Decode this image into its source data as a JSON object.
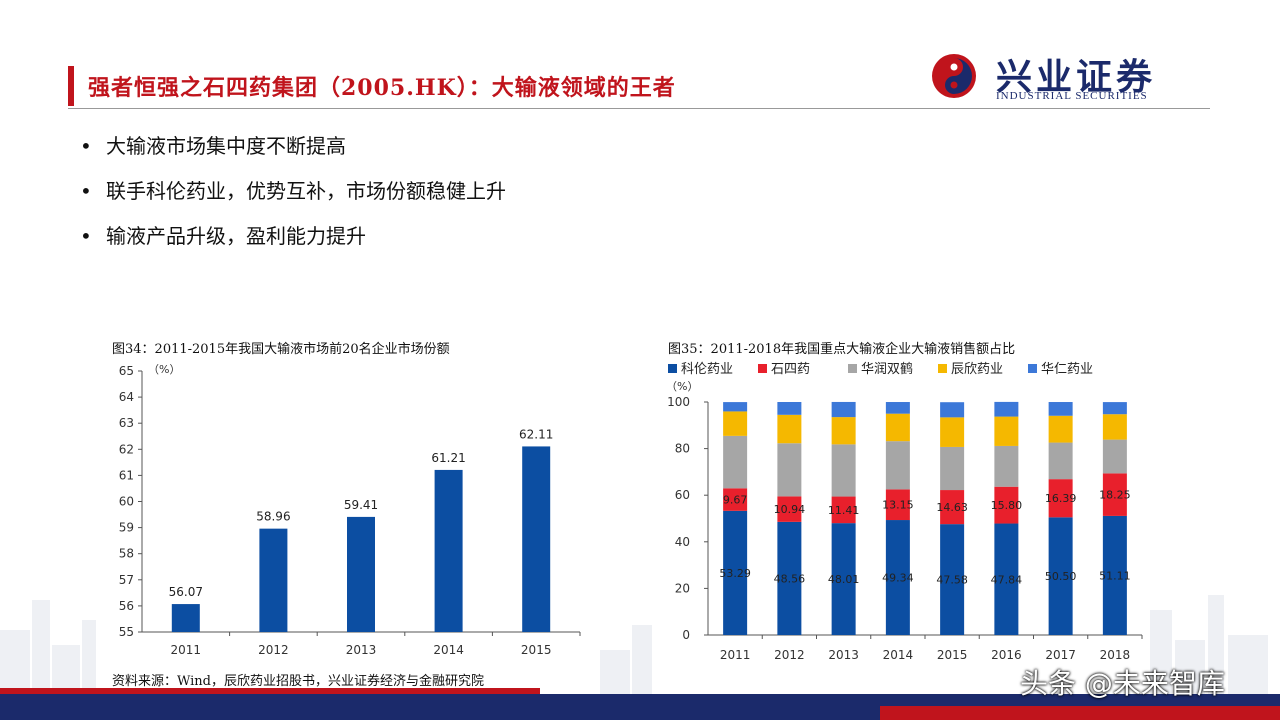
{
  "header": {
    "title": "强者恒强之石四药集团（2005.HK）：大输液领域的王者",
    "logo_cn": "兴业证券",
    "logo_en": "INDUSTRIAL SECURITIES"
  },
  "bullets": [
    "大输液市场集中度不断提高",
    "联手科伦药业，优势互补，市场份额稳健上升",
    "输液产品升级，盈利能力提升"
  ],
  "colors": {
    "accent_red": "#c0141c",
    "brand_navy": "#1b2a6b",
    "bar_blue": "#0c4ea2"
  },
  "chart_data": [
    {
      "type": "bar",
      "title": "图34：2011-2015年我国大输液市场前20名企业市场份额",
      "unit_label": "（%）",
      "categories": [
        "2011",
        "2012",
        "2013",
        "2014",
        "2015"
      ],
      "values": [
        56.07,
        58.96,
        59.41,
        61.21,
        62.11
      ],
      "data_labels": [
        "56.07",
        "58.96",
        "59.41",
        "61.21",
        "62.11"
      ],
      "ylim": [
        55,
        65
      ],
      "yticks": [
        "55",
        "56",
        "57",
        "58",
        "59",
        "60",
        "61",
        "62",
        "63",
        "64",
        "65"
      ],
      "color": "#0c4ea2",
      "grid": false
    },
    {
      "type": "stacked-bar",
      "title": "图35：2011-2018年我国重点大输液企业大输液销售额占比",
      "unit_label": "（%）",
      "legend_position": "top",
      "categories": [
        "2011",
        "2012",
        "2013",
        "2014",
        "2015",
        "2016",
        "2017",
        "2018"
      ],
      "ylim": [
        0,
        100
      ],
      "yticks": [
        "0",
        "20",
        "40",
        "60",
        "80",
        "100"
      ],
      "grid": false,
      "series": [
        {
          "name": "科伦药业",
          "color": "#0c4ea2",
          "values": [
            53.29,
            48.56,
            48.01,
            49.34,
            47.58,
            47.84,
            50.5,
            51.11
          ],
          "labels": [
            "53.29",
            "48.56",
            "48.01",
            "49.34",
            "47.58",
            "47.84",
            "50.50",
            "51.11"
          ]
        },
        {
          "name": "石四药",
          "color": "#e8202c",
          "values": [
            9.67,
            10.94,
            11.41,
            13.15,
            14.63,
            15.8,
            16.39,
            18.25
          ],
          "labels": [
            "9.67",
            "10.94",
            "11.41",
            "13.15",
            "14.63",
            "15.80",
            "16.39",
            "18.25"
          ]
        },
        {
          "name": "华润双鹤",
          "color": "#a6a6a6",
          "values": [
            22.5,
            22.8,
            22.4,
            20.7,
            18.5,
            17.5,
            15.7,
            14.5
          ]
        },
        {
          "name": "辰欣药业",
          "color": "#f5b800",
          "values": [
            10.5,
            12.2,
            11.7,
            11.8,
            12.7,
            12.6,
            11.5,
            10.9
          ]
        },
        {
          "name": "华仁药业",
          "color": "#3c78d8",
          "values": [
            4.0,
            5.5,
            6.5,
            5.0,
            6.5,
            6.3,
            5.9,
            5.2
          ]
        }
      ]
    }
  ],
  "source": "资料来源：Wind，辰欣药业招股书，兴业证券经济与金融研究院",
  "watermark": "头条 @未来智库"
}
